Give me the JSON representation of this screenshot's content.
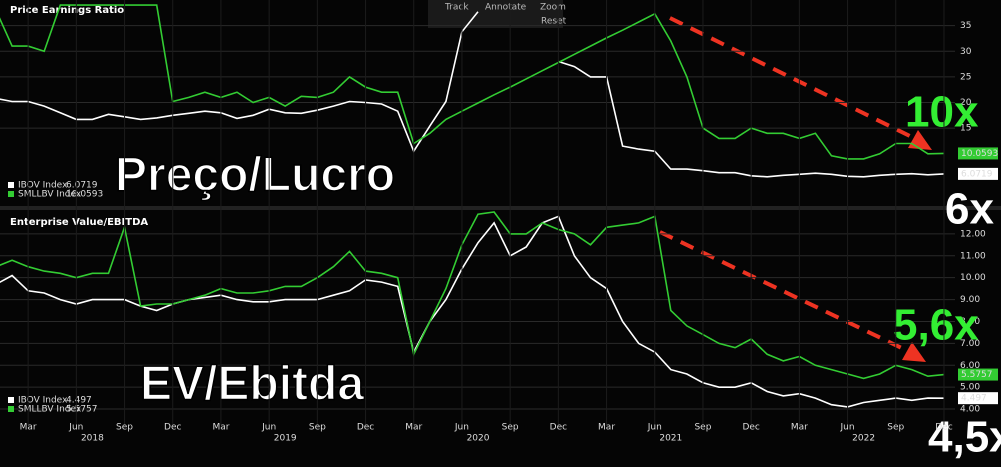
{
  "toolbar": {
    "track": "Track",
    "annotate": "Annotate",
    "zoom": "Zoom",
    "reset": "Reset"
  },
  "chart_data": [
    {
      "type": "line",
      "title": "Price Earnings Ratio",
      "grid": true,
      "x": [
        "2018-01",
        "2018-02",
        "2018-03",
        "2018-04",
        "2018-05",
        "2018-06",
        "2018-07",
        "2018-08",
        "2018-09",
        "2018-10",
        "2018-11",
        "2018-12",
        "2019-01",
        "2019-02",
        "2019-03",
        "2019-04",
        "2019-05",
        "2019-06",
        "2019-07",
        "2019-08",
        "2019-09",
        "2019-10",
        "2019-11",
        "2019-12",
        "2020-01",
        "2020-02",
        "2020-03",
        "2020-04",
        "2020-05",
        "2020-06",
        "2020-07",
        "2020-08",
        "2020-09",
        "2020-10",
        "2020-11",
        "2020-12",
        "2021-01",
        "2021-02",
        "2021-03",
        "2021-04",
        "2021-05",
        "2021-06",
        "2021-07",
        "2021-08",
        "2021-09",
        "2021-10",
        "2021-11",
        "2021-12",
        "2022-01",
        "2022-02",
        "2022-03",
        "2022-04",
        "2022-05",
        "2022-06",
        "2022-07",
        "2022-08",
        "2022-09",
        "2022-10",
        "2022-11",
        "2022-12"
      ],
      "ylim": [
        0,
        40
      ],
      "yticks": [
        15,
        20,
        25,
        30,
        35
      ],
      "series": [
        {
          "name": "IBOV Index",
          "color": "#ffffff",
          "values": [
            20.8,
            20.2,
            20.2,
            19.3,
            18.0,
            16.7,
            16.7,
            17.7,
            17.2,
            16.7,
            17.0,
            17.5,
            17.9,
            18.3,
            18.0,
            16.9,
            17.5,
            18.7,
            18.0,
            17.9,
            18.5,
            19.3,
            20.2,
            20.0,
            19.7,
            18.3,
            10.5,
            15.4,
            20.2,
            33.8,
            37.7,
            null,
            null,
            null,
            null,
            28.0,
            27.0,
            25.0,
            25.0,
            11.5,
            10.9,
            10.5,
            7.0,
            7.0,
            6.7,
            6.3,
            6.3,
            5.7,
            5.5,
            5.8,
            6.0,
            6.2,
            6.0,
            5.6,
            5.5,
            5.8,
            6.0,
            6.1,
            5.9,
            6.0719
          ]
        },
        {
          "name": "SMLLBV Index",
          "color": "#33cc33",
          "values": [
            38,
            31,
            31,
            30,
            39,
            39,
            39,
            39,
            39,
            39,
            39,
            20.2,
            21,
            22,
            21,
            22,
            20,
            21,
            19.3,
            21.2,
            21,
            22,
            25,
            23,
            22,
            22,
            12,
            14,
            16.7,
            18.3,
            19.9,
            21.5,
            23.0,
            24.6,
            26.2,
            27.8,
            29.4,
            31.0,
            32.6,
            34.1,
            35.7,
            37.3,
            32,
            25,
            15,
            13,
            13,
            15,
            14,
            14,
            13,
            14,
            9.6,
            9,
            9,
            10,
            12,
            12,
            10,
            10.0593
          ]
        }
      ],
      "annotations": [
        "Preço/Lucro",
        "10x",
        "6x"
      ]
    },
    {
      "type": "line",
      "title": "Enterprise Value/EBITDA",
      "grid": true,
      "x": [
        "2018-01",
        "2018-02",
        "2018-03",
        "2018-04",
        "2018-05",
        "2018-06",
        "2018-07",
        "2018-08",
        "2018-09",
        "2018-10",
        "2018-11",
        "2018-12",
        "2019-01",
        "2019-02",
        "2019-03",
        "2019-04",
        "2019-05",
        "2019-06",
        "2019-07",
        "2019-08",
        "2019-09",
        "2019-10",
        "2019-11",
        "2019-12",
        "2020-01",
        "2020-02",
        "2020-03",
        "2020-04",
        "2020-05",
        "2020-06",
        "2020-07",
        "2020-08",
        "2020-09",
        "2020-10",
        "2020-11",
        "2020-12",
        "2021-01",
        "2021-02",
        "2021-03",
        "2021-04",
        "2021-05",
        "2021-06",
        "2021-07",
        "2021-08",
        "2021-09",
        "2021-10",
        "2021-11",
        "2021-12",
        "2022-01",
        "2022-02",
        "2022-03",
        "2022-04",
        "2022-05",
        "2022-06",
        "2022-07",
        "2022-08",
        "2022-09",
        "2022-10",
        "2022-11",
        "2022-12"
      ],
      "ylim": [
        3.5,
        13
      ],
      "yticks": [
        {
          "value": 4,
          "label": "4.00"
        },
        {
          "value": 5,
          "label": "5.00"
        },
        {
          "value": 6,
          "label": "6.00"
        },
        {
          "value": 7,
          "label": "7.00"
        },
        {
          "value": 8,
          "label": "8.00"
        },
        {
          "value": 9,
          "label": "9.00"
        },
        {
          "value": 10,
          "label": "10.00"
        },
        {
          "value": 11,
          "label": "11.00"
        },
        {
          "value": 12,
          "label": "12.00"
        }
      ],
      "series": [
        {
          "name": "IBOV Index",
          "color": "#ffffff",
          "values": [
            9.7,
            10.1,
            9.4,
            9.3,
            9.0,
            8.8,
            9.0,
            9.0,
            9.0,
            8.7,
            8.5,
            8.8,
            9.0,
            9.1,
            9.2,
            9.0,
            8.9,
            8.9,
            9.0,
            9.0,
            9.0,
            9.2,
            9.4,
            9.9,
            9.8,
            9.6,
            6.6,
            8.0,
            9.0,
            10.4,
            11.6,
            12.5,
            11.0,
            11.4,
            12.5,
            12.8,
            11.0,
            10.0,
            9.5,
            8.0,
            7.0,
            6.6,
            5.8,
            5.6,
            5.2,
            5.0,
            5.0,
            5.2,
            4.8,
            4.6,
            4.7,
            4.5,
            4.2,
            4.1,
            4.3,
            4.4,
            4.5,
            4.4,
            4.5,
            4.497
          ]
        },
        {
          "name": "SMLLBV Index",
          "color": "#33cc33",
          "values": [
            10.5,
            10.8,
            10.5,
            10.3,
            10.2,
            10.0,
            10.2,
            10.2,
            12.3,
            8.7,
            8.8,
            8.8,
            9.0,
            9.2,
            9.5,
            9.3,
            9.3,
            9.4,
            9.6,
            9.6,
            10.0,
            10.5,
            11.2,
            10.3,
            10.2,
            10.0,
            6.5,
            8.0,
            9.5,
            11.5,
            12.9,
            13.0,
            12.0,
            12.0,
            12.5,
            12.2,
            12.0,
            11.5,
            12.3,
            12.4,
            12.5,
            12.8,
            8.5,
            7.8,
            7.4,
            7.0,
            6.8,
            7.2,
            6.5,
            6.2,
            6.4,
            6.0,
            5.8,
            5.6,
            5.4,
            5.6,
            6.0,
            5.8,
            5.5,
            5.5757
          ]
        }
      ],
      "annotations": [
        "EV/Ebitda",
        "5,6x",
        "4,5x"
      ],
      "xticks": [
        {
          "value": "2018-03",
          "label": "Mar"
        },
        {
          "value": "2018-06",
          "label": "Jun"
        },
        {
          "value": "2018-09",
          "label": "Sep"
        },
        {
          "value": "2018-12",
          "label": "Dec"
        },
        {
          "value": "2019-03",
          "label": "Mar"
        },
        {
          "value": "2019-06",
          "label": "Jun"
        },
        {
          "value": "2019-09",
          "label": "Sep"
        },
        {
          "value": "2019-12",
          "label": "Dec"
        },
        {
          "value": "2020-03",
          "label": "Mar"
        },
        {
          "value": "2020-06",
          "label": "Jun"
        },
        {
          "value": "2020-09",
          "label": "Sep"
        },
        {
          "value": "2020-12",
          "label": "Dec"
        },
        {
          "value": "2021-03",
          "label": "Mar"
        },
        {
          "value": "2021-06",
          "label": "Jun"
        },
        {
          "value": "2021-09",
          "label": "Sep"
        },
        {
          "value": "2021-12",
          "label": "Dec"
        },
        {
          "value": "2022-03",
          "label": "Mar"
        },
        {
          "value": "2022-06",
          "label": "Jun"
        },
        {
          "value": "2022-09",
          "label": "Sep"
        },
        {
          "value": "2022-12",
          "label": "Dec"
        }
      ],
      "xyears": [
        {
          "value": "2018-07",
          "label": "2018"
        },
        {
          "value": "2019-07",
          "label": "2019"
        },
        {
          "value": "2020-07",
          "label": "2020"
        },
        {
          "value": "2021-07",
          "label": "2021"
        },
        {
          "value": "2022-07",
          "label": "2022"
        }
      ]
    }
  ]
}
